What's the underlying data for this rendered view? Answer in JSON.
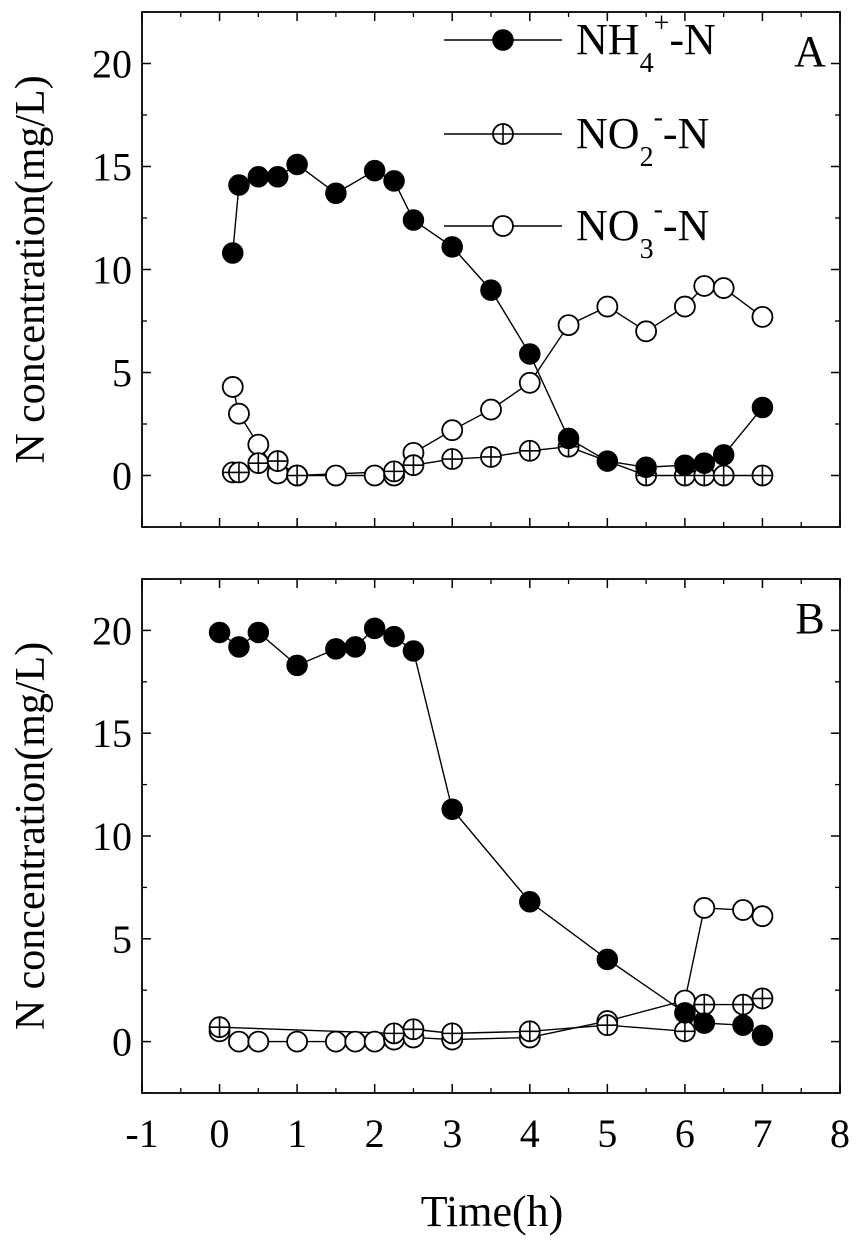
{
  "chart_data": [
    {
      "panel": "A",
      "type": "line",
      "xlim": [
        -1,
        8
      ],
      "ylim": [
        -2.5,
        22.5
      ],
      "yticks": [
        0,
        5,
        10,
        15,
        20
      ],
      "ylabel": "N concentration(mg/L)",
      "xlabel": "",
      "series": [
        {
          "name": "NH4+-N",
          "legend_main": "NH",
          "legend_sub": "4",
          "legend_sup": "+",
          "legend_tail": "-N",
          "marker": "filled-circle",
          "x": [
            0.17,
            0.25,
            0.5,
            0.75,
            1,
            1.5,
            2,
            2.25,
            2.5,
            3,
            3.5,
            4,
            4.5,
            5,
            5.5,
            6,
            6.25,
            6.5,
            7
          ],
          "y": [
            10.8,
            14.1,
            14.5,
            14.5,
            15.1,
            13.7,
            14.8,
            14.3,
            12.4,
            11.1,
            9.0,
            5.9,
            1.8,
            0.7,
            0.4,
            0.5,
            0.6,
            1.0,
            3.3
          ]
        },
        {
          "name": "NO2--N",
          "legend_main": "NO",
          "legend_sub": "2",
          "legend_sup": "-",
          "legend_tail": "-N",
          "marker": "crossed-circle",
          "x": [
            0.17,
            0.25,
            0.5,
            0.75,
            1,
            2.25,
            2.5,
            3,
            3.5,
            4,
            4.5,
            5.5,
            6,
            6.25,
            6.5,
            7
          ],
          "y": [
            0.15,
            0.15,
            0.6,
            0.7,
            0.0,
            0.2,
            0.5,
            0.8,
            0.9,
            1.2,
            1.4,
            0.0,
            0.0,
            0.0,
            0.0,
            0.0
          ]
        },
        {
          "name": "NO3--N",
          "legend_main": "NO",
          "legend_sub": "3",
          "legend_sup": "-",
          "legend_tail": "-N",
          "marker": "open-circle",
          "x": [
            0.17,
            0.25,
            0.5,
            0.75,
            1,
            1.5,
            2,
            2.25,
            2.5,
            3,
            3.5,
            4,
            4.5,
            5,
            5.5,
            6,
            6.25,
            6.5,
            7
          ],
          "y": [
            4.3,
            3.0,
            1.5,
            0.1,
            0.0,
            0.0,
            0.0,
            0.0,
            1.1,
            2.2,
            3.2,
            4.5,
            7.3,
            8.2,
            7.0,
            8.2,
            9.2,
            9.1,
            7.7
          ]
        }
      ],
      "panel_label": "A"
    },
    {
      "panel": "B",
      "type": "line",
      "xlim": [
        -1,
        8
      ],
      "ylim": [
        -2.5,
        22.5
      ],
      "xticks": [
        -1,
        0,
        1,
        2,
        3,
        4,
        5,
        6,
        7,
        8
      ],
      "yticks": [
        0,
        5,
        10,
        15,
        20
      ],
      "ylabel": "N concentration(mg/L)",
      "xlabel": "Time(h)",
      "series": [
        {
          "name": "NH4+-N",
          "marker": "filled-circle",
          "x": [
            0,
            0.25,
            0.5,
            1,
            1.5,
            1.75,
            2,
            2.25,
            2.5,
            3,
            4,
            5,
            6,
            6.25,
            6.75,
            7
          ],
          "y": [
            19.9,
            19.2,
            19.9,
            18.3,
            19.1,
            19.2,
            20.1,
            19.7,
            19.0,
            11.3,
            6.8,
            4.0,
            1.4,
            0.9,
            0.8,
            0.3
          ]
        },
        {
          "name": "NO2--N",
          "marker": "crossed-circle",
          "x": [
            0,
            2.25,
            2.5,
            3,
            4,
            5,
            6,
            6.25,
            6.75,
            7
          ],
          "y": [
            0.7,
            0.4,
            0.6,
            0.4,
            0.5,
            0.8,
            0.5,
            1.8,
            1.8,
            2.1
          ]
        },
        {
          "name": "NO3--N",
          "marker": "open-circle",
          "x": [
            0,
            0.25,
            0.5,
            1,
            1.5,
            1.75,
            2,
            2.25,
            2.5,
            3,
            4,
            5,
            6,
            6.25,
            6.75,
            7
          ],
          "y": [
            0.5,
            0.0,
            0.0,
            0.0,
            0.0,
            0.0,
            0.0,
            0.1,
            0.2,
            0.1,
            0.2,
            1.0,
            2.0,
            6.5,
            6.4,
            6.1
          ]
        }
      ],
      "panel_label": "B"
    }
  ]
}
